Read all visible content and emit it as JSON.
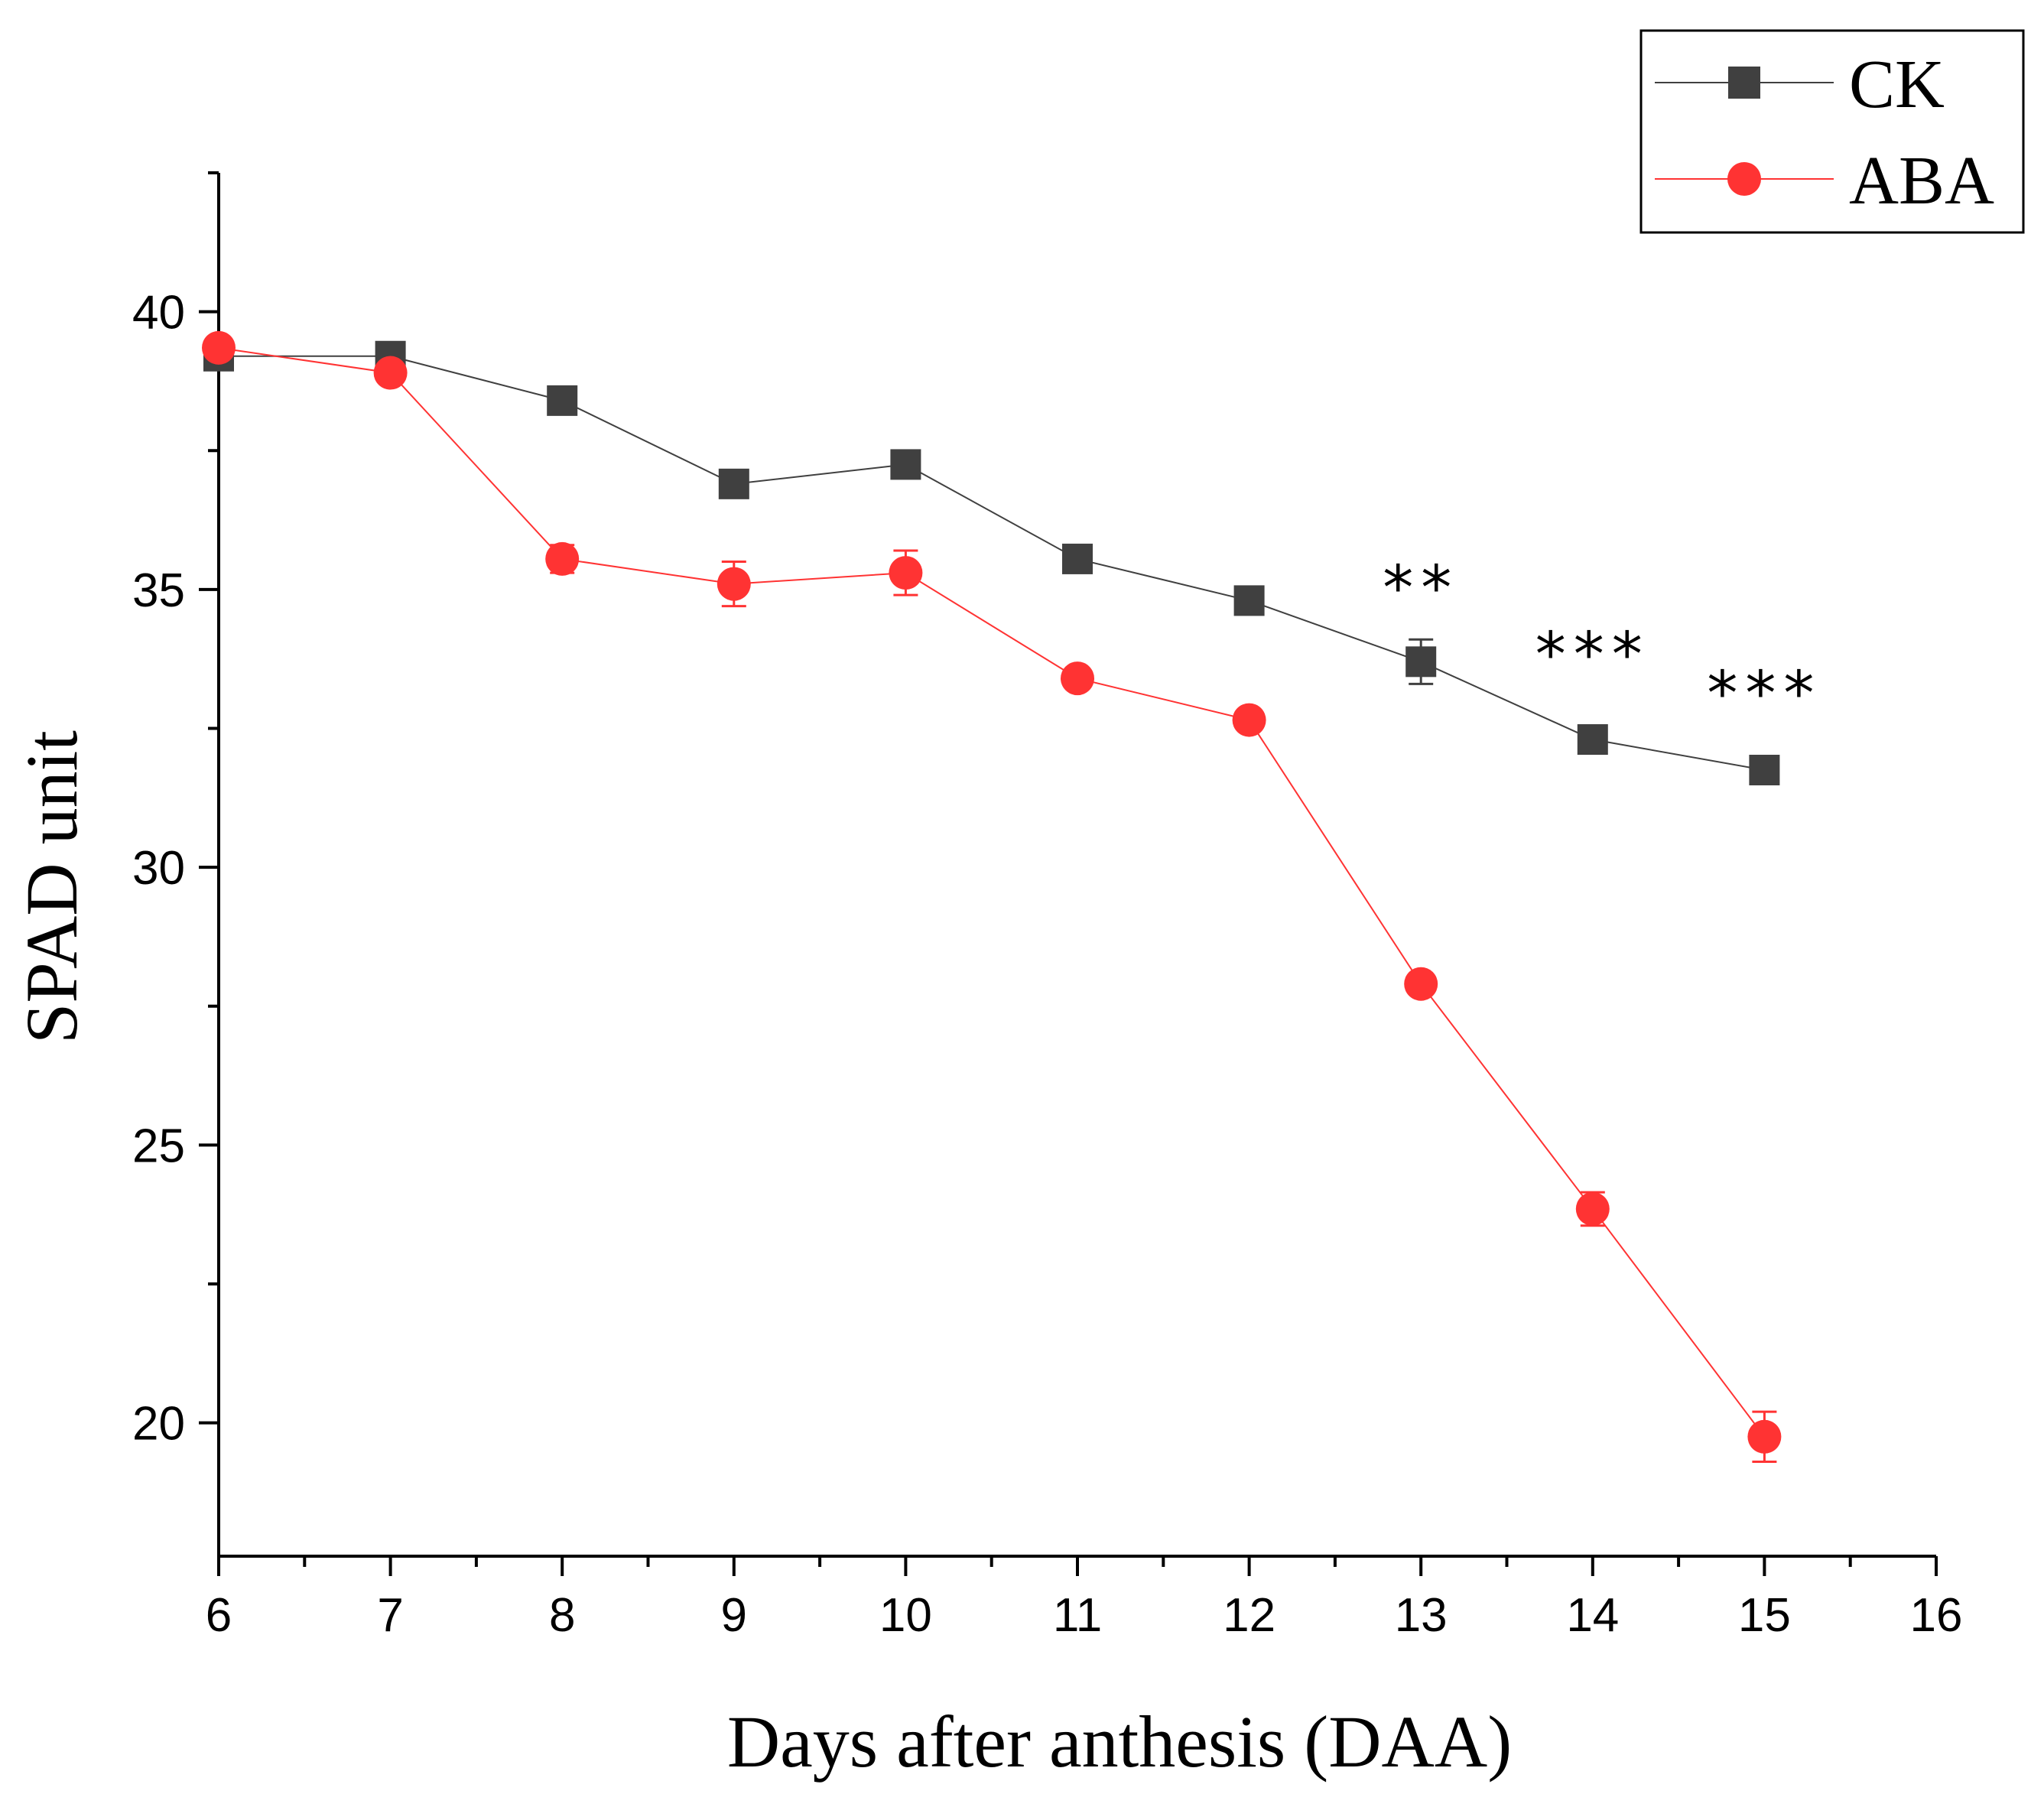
{
  "chart_data": {
    "type": "line",
    "title": "",
    "xlabel": "Days after anthesis (DAA)",
    "ylabel": "SPAD unit",
    "xlim": [
      6,
      16
    ],
    "ylim": [
      17.6,
      42.5
    ],
    "x_ticks": [
      6,
      7,
      8,
      9,
      10,
      11,
      12,
      13,
      14,
      15,
      16
    ],
    "y_ticks": [
      20,
      25,
      30,
      35,
      40
    ],
    "grid": false,
    "legend_position": "top-right",
    "series": [
      {
        "name": "CK",
        "color": "#404040",
        "marker": "square",
        "x": [
          6,
          7,
          8,
          9,
          10,
          11,
          12,
          13,
          14,
          15
        ],
        "values": [
          39.2,
          39.2,
          38.4,
          36.9,
          37.25,
          35.55,
          34.8,
          33.7,
          32.3,
          31.75
        ],
        "errors": [
          0.1,
          0.1,
          0.1,
          0.1,
          0.1,
          0.1,
          0.1,
          0.4,
          0.1,
          0.1
        ]
      },
      {
        "name": "ABA",
        "color": "#ff3333",
        "marker": "circle",
        "x": [
          6,
          7,
          8,
          9,
          10,
          11,
          12,
          13,
          14,
          15
        ],
        "values": [
          39.35,
          38.9,
          35.55,
          35.1,
          35.3,
          33.4,
          32.65,
          27.9,
          23.85,
          19.75
        ],
        "errors": [
          0.1,
          0.1,
          0.25,
          0.4,
          0.4,
          0.1,
          0.1,
          0.1,
          0.3,
          0.45
        ]
      }
    ],
    "annotations": [
      {
        "x": 13,
        "y": 35.2,
        "text": "**"
      },
      {
        "x": 14,
        "y": 34.0,
        "text": "***"
      },
      {
        "x": 15,
        "y": 33.3,
        "text": "***"
      }
    ]
  }
}
